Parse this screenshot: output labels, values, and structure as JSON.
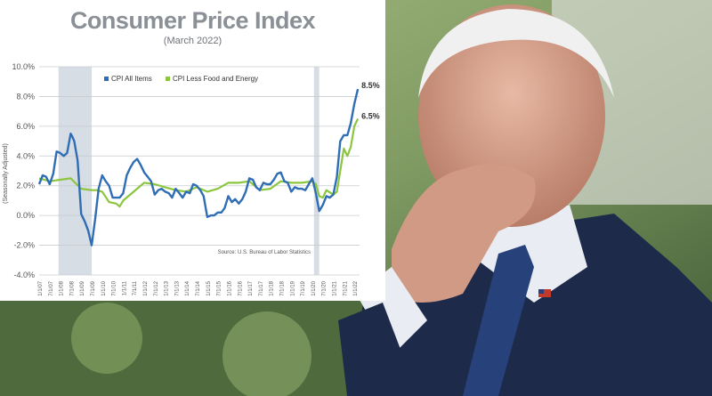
{
  "chart_data": {
    "type": "line",
    "title": "Consumer Price Index",
    "subtitle": "(March 2022)",
    "ylabel": "(Seasonally Adjusted)",
    "source": "Source: U.S. Bureau of Labor Statistics",
    "ylim": [
      -4.0,
      10.0
    ],
    "y_ticks": [
      "10.0%",
      "8.0%",
      "6.0%",
      "4.0%",
      "2.0%",
      "0.0%",
      "-2.0%",
      "-4.0%"
    ],
    "y_tick_values": [
      10,
      8,
      6,
      4,
      2,
      0,
      -2,
      -4
    ],
    "x_ticks": [
      "1/1/07",
      "7/1/07",
      "1/1/08",
      "7/1/08",
      "1/1/09",
      "7/1/09",
      "1/1/10",
      "7/1/10",
      "1/1/11",
      "7/1/11",
      "1/1/12",
      "7/1/12",
      "1/1/13",
      "7/1/13",
      "1/1/14",
      "7/1/14",
      "1/1/15",
      "7/1/15",
      "1/1/16",
      "7/1/16",
      "1/1/17",
      "7/1/17",
      "1/1/18",
      "7/1/18",
      "1/1/19",
      "7/1/19",
      "1/1/20",
      "7/1/20",
      "1/1/21",
      "7/1/21",
      "1/1/22"
    ],
    "grid": true,
    "legend_position": "top",
    "shaded_periods": [
      [
        2007.92,
        2009.5
      ],
      [
        2020.08,
        2020.33
      ]
    ],
    "colors": {
      "all_items": "#2f6db5",
      "core": "#8cc63f",
      "shade": "#d6dde4"
    },
    "series": [
      {
        "name": "CPI All Items",
        "end_label": "8.5%",
        "x": [
          2007.0,
          2007.17,
          2007.33,
          2007.5,
          2007.67,
          2007.83,
          2008.0,
          2008.17,
          2008.33,
          2008.5,
          2008.58,
          2008.67,
          2008.83,
          2009.0,
          2009.17,
          2009.33,
          2009.5,
          2009.67,
          2009.83,
          2010.0,
          2010.17,
          2010.33,
          2010.5,
          2010.67,
          2010.83,
          2011.0,
          2011.17,
          2011.33,
          2011.5,
          2011.67,
          2011.83,
          2012.0,
          2012.17,
          2012.33,
          2012.5,
          2012.67,
          2012.83,
          2013.0,
          2013.17,
          2013.33,
          2013.5,
          2013.67,
          2013.83,
          2014.0,
          2014.17,
          2014.33,
          2014.5,
          2014.67,
          2014.83,
          2015.0,
          2015.17,
          2015.33,
          2015.5,
          2015.67,
          2015.83,
          2016.0,
          2016.17,
          2016.33,
          2016.5,
          2016.67,
          2016.83,
          2017.0,
          2017.17,
          2017.33,
          2017.5,
          2017.67,
          2017.83,
          2018.0,
          2018.17,
          2018.33,
          2018.5,
          2018.67,
          2018.83,
          2019.0,
          2019.17,
          2019.33,
          2019.5,
          2019.67,
          2019.83,
          2020.0,
          2020.17,
          2020.33,
          2020.5,
          2020.67,
          2020.83,
          2021.0,
          2021.17,
          2021.33,
          2021.5,
          2021.67,
          2021.83,
          2022.0,
          2022.17
        ],
        "values": [
          2.1,
          2.7,
          2.6,
          2.1,
          2.8,
          4.3,
          4.2,
          4.0,
          4.2,
          5.5,
          5.3,
          5.0,
          3.7,
          0.1,
          -0.4,
          -1.0,
          -2.0,
          -0.2,
          1.8,
          2.7,
          2.3,
          2.0,
          1.2,
          1.2,
          1.2,
          1.5,
          2.7,
          3.2,
          3.6,
          3.8,
          3.4,
          2.9,
          2.6,
          2.3,
          1.4,
          1.7,
          1.8,
          1.6,
          1.5,
          1.2,
          1.8,
          1.5,
          1.2,
          1.6,
          1.5,
          2.1,
          2.0,
          1.7,
          1.3,
          -0.1,
          0.0,
          0.0,
          0.2,
          0.2,
          0.5,
          1.3,
          0.9,
          1.1,
          0.8,
          1.1,
          1.6,
          2.5,
          2.4,
          1.9,
          1.7,
          2.2,
          2.1,
          2.1,
          2.4,
          2.8,
          2.9,
          2.3,
          2.2,
          1.6,
          1.9,
          1.8,
          1.8,
          1.7,
          2.1,
          2.5,
          1.5,
          0.3,
          0.7,
          1.3,
          1.2,
          1.4,
          2.6,
          5.0,
          5.4,
          5.4,
          6.2,
          7.5,
          8.5
        ]
      },
      {
        "name": "CPI Less Food and Energy",
        "end_label": "6.5%",
        "x": [
          2007.0,
          2007.5,
          2008.0,
          2008.5,
          2009.0,
          2009.5,
          2009.75,
          2010.0,
          2010.33,
          2010.67,
          2010.83,
          2011.0,
          2011.5,
          2012.0,
          2012.5,
          2013.0,
          2013.5,
          2014.0,
          2014.5,
          2015.0,
          2015.5,
          2016.0,
          2016.5,
          2017.0,
          2017.5,
          2018.0,
          2018.5,
          2019.0,
          2019.5,
          2020.0,
          2020.17,
          2020.33,
          2020.5,
          2020.67,
          2021.0,
          2021.17,
          2021.33,
          2021.5,
          2021.67,
          2021.83,
          2022.0,
          2022.17
        ],
        "values": [
          2.5,
          2.3,
          2.4,
          2.5,
          1.8,
          1.7,
          1.7,
          1.6,
          0.9,
          0.8,
          0.6,
          1.0,
          1.6,
          2.2,
          2.1,
          1.9,
          1.7,
          1.6,
          1.9,
          1.6,
          1.8,
          2.2,
          2.2,
          2.3,
          1.7,
          1.8,
          2.3,
          2.2,
          2.2,
          2.3,
          2.1,
          1.3,
          1.2,
          1.7,
          1.4,
          1.6,
          3.0,
          4.5,
          4.0,
          4.6,
          6.0,
          6.5
        ]
      }
    ]
  },
  "photo": {
    "description_icon": "person-photo"
  }
}
